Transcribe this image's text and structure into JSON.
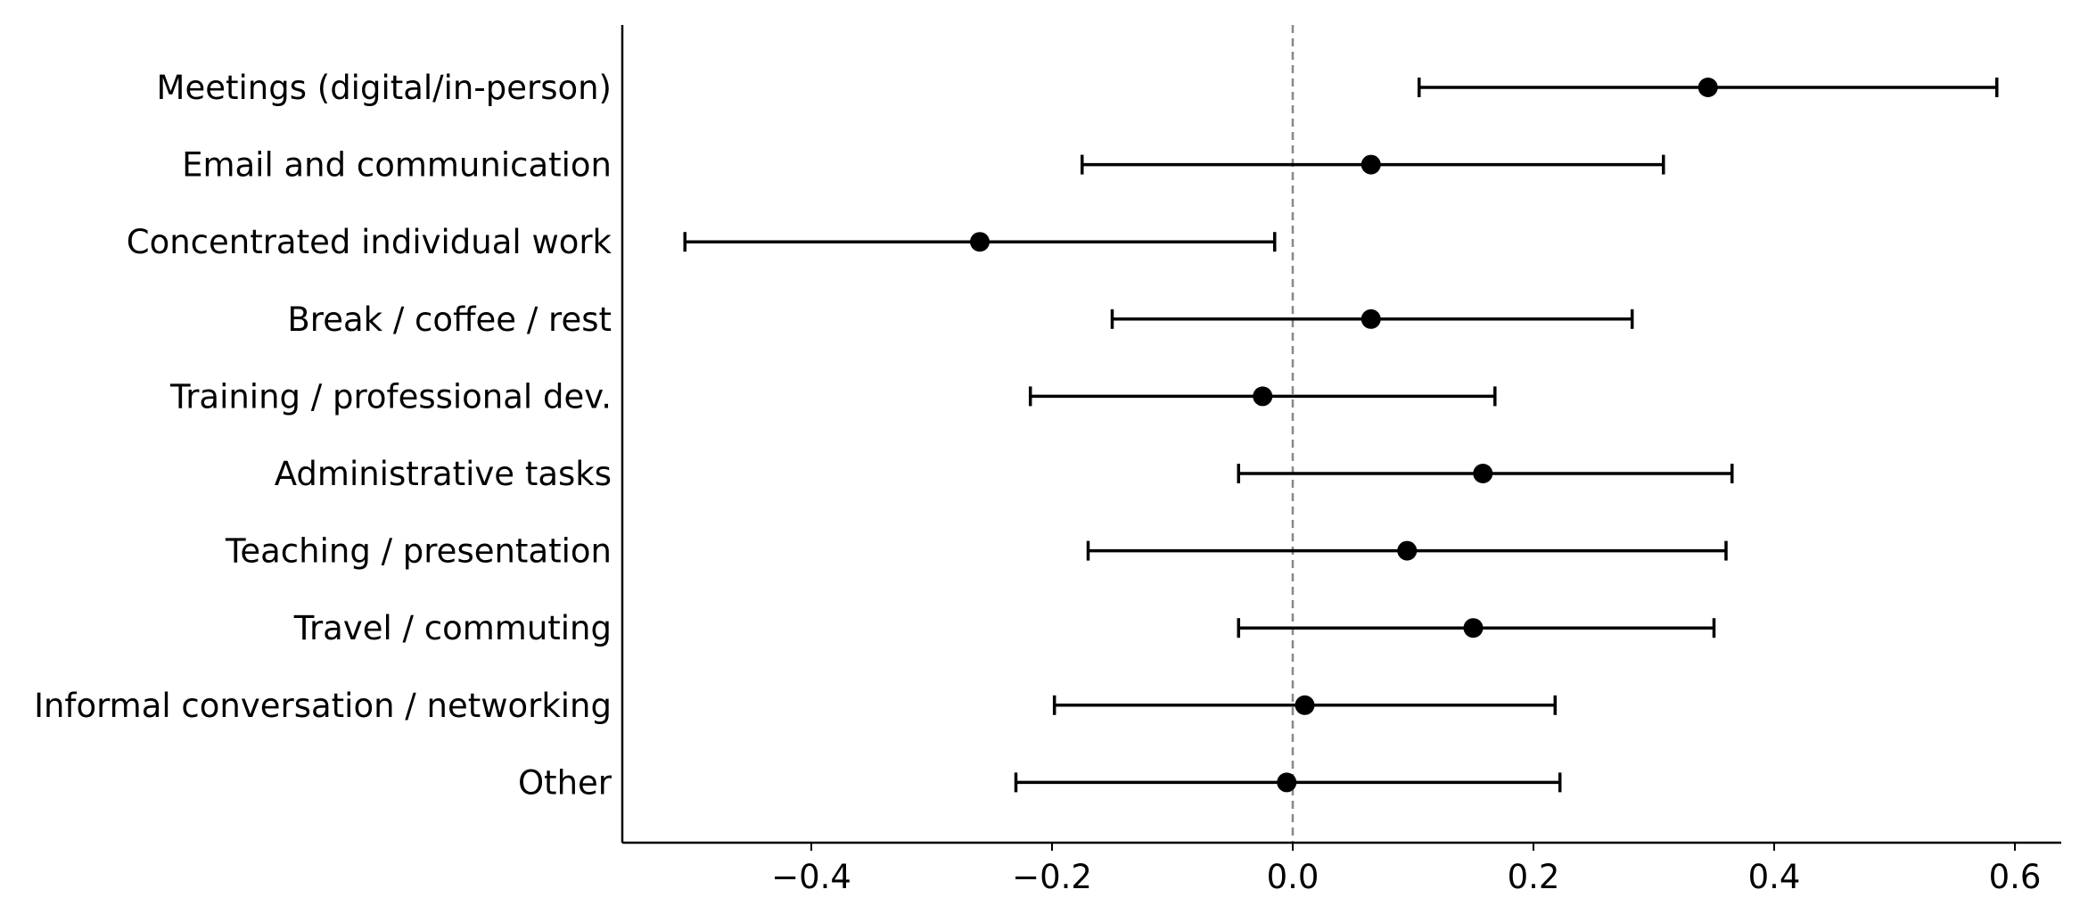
{
  "chart_data": {
    "type": "scatter",
    "orientation": "horizontal",
    "title": "",
    "xlabel": "",
    "ylabel": "",
    "categories": [
      "Meetings (digital/in-person)",
      "Email and communication",
      "Concentrated individual work",
      "Break / coffee / rest",
      "Training / professional dev.",
      "Administrative tasks",
      "Teaching / presentation",
      "Travel / commuting",
      "Informal conversation / networking",
      "Other"
    ],
    "series": [
      {
        "values": [
          0.345,
          0.065,
          -0.26,
          0.065,
          -0.025,
          0.158,
          0.095,
          0.15,
          0.01,
          -0.005
        ],
        "ci_low": [
          0.105,
          -0.175,
          -0.505,
          -0.15,
          -0.218,
          -0.045,
          -0.17,
          -0.045,
          -0.198,
          -0.23
        ],
        "ci_high": [
          0.585,
          0.308,
          -0.015,
          0.282,
          0.168,
          0.365,
          0.36,
          0.35,
          0.218,
          0.222
        ]
      }
    ],
    "xlim": [
      -0.56,
      0.64
    ],
    "xticks": [
      -0.4,
      -0.2,
      0.0,
      0.2,
      0.4,
      0.6
    ],
    "xtick_labels": [
      "−0.4",
      "−0.2",
      "0.0",
      "0.2",
      "0.4",
      "0.6"
    ],
    "reference_line": {
      "x": 0.0,
      "style": "dashed",
      "color": "#888888"
    },
    "marker_color": "#000000",
    "errorbar_color": "#000000",
    "grid": false,
    "legend": "none"
  }
}
